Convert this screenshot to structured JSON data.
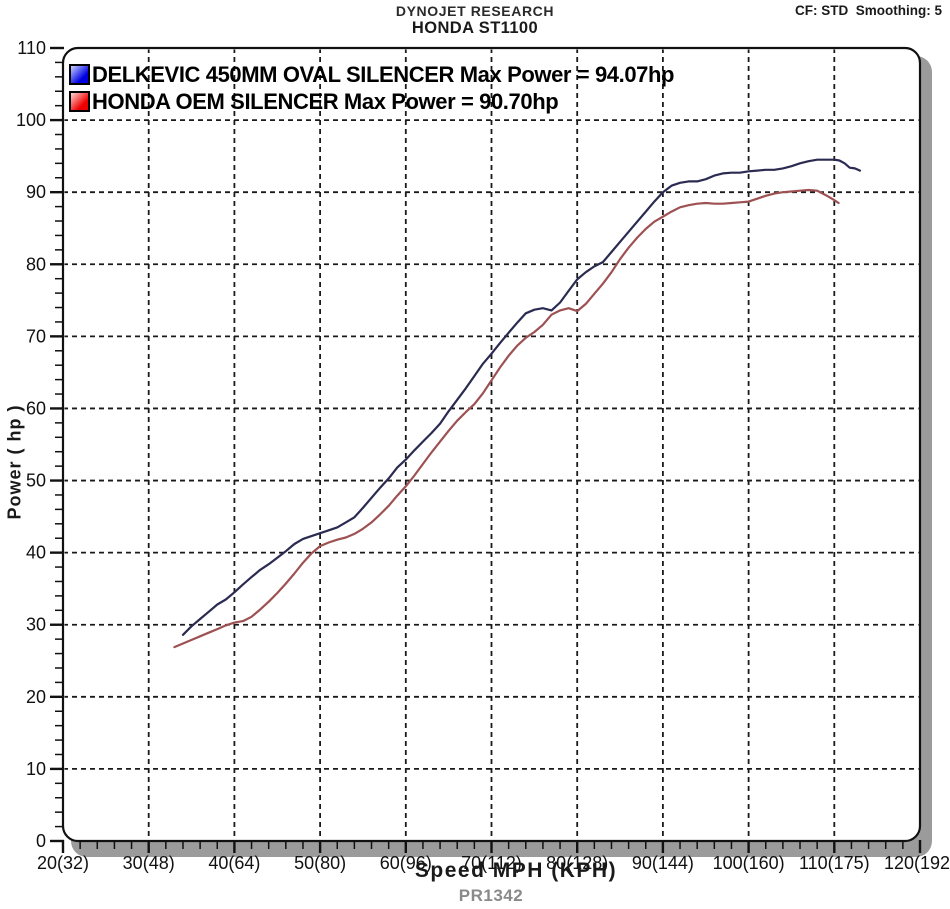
{
  "header": {
    "brand": "DYNOJET RESEARCH",
    "model": "HONDA ST1100",
    "settings": "CF: STD  Smoothing: 5"
  },
  "footer": {
    "run_id": "PR1342"
  },
  "chart_data": {
    "type": "line",
    "title": "DYNOJET RESEARCH HONDA ST1100",
    "xlabel": "Speed MPH (KPH)",
    "ylabel": "Power ( hp )",
    "xlim": [
      20,
      120
    ],
    "ylim": [
      0,
      110
    ],
    "grid": "dashed, both axes, every 10 units",
    "legend_position": "top-left inside plot",
    "x_ticks": [
      20,
      30,
      40,
      50,
      60,
      70,
      80,
      90,
      100,
      110,
      120
    ],
    "x_tick_labels": [
      "20(32)",
      "30(48)",
      "40(64)",
      "50(80)",
      "60(96)",
      "70(112)",
      "80(128)",
      "90(144)",
      "100(160)",
      "110(175)",
      "120(192)"
    ],
    "x_minor_step": 2,
    "y_ticks": [
      0,
      10,
      20,
      30,
      40,
      50,
      60,
      70,
      80,
      90,
      100,
      110
    ],
    "y_tick_labels": [
      "0",
      "10",
      "20",
      "30",
      "40",
      "50",
      "60",
      "70",
      "80",
      "90",
      "100",
      "110"
    ],
    "y_minor_step": 2,
    "series": [
      {
        "name": "DELKEVIC 450MM OVAL SILENCER",
        "legend_label": "DELKEVIC 450MM OVAL SILENCER Max Power = 94.07hp",
        "max_power_hp": 94.07,
        "line_color": "#2b2b52",
        "swatch_light": "#c9d4ff",
        "swatch_dark": "#0000e0",
        "points": [
          [
            34,
            28.6
          ],
          [
            35,
            29.8
          ],
          [
            36,
            30.8
          ],
          [
            37,
            31.8
          ],
          [
            38,
            32.8
          ],
          [
            39,
            33.5
          ],
          [
            40,
            34.5
          ],
          [
            41,
            35.6
          ],
          [
            42,
            36.6
          ],
          [
            43,
            37.6
          ],
          [
            44,
            38.4
          ],
          [
            45,
            39.3
          ],
          [
            46,
            40.2
          ],
          [
            47,
            41.2
          ],
          [
            48,
            41.9
          ],
          [
            49,
            42.3
          ],
          [
            50,
            42.7
          ],
          [
            51,
            43.1
          ],
          [
            52,
            43.5
          ],
          [
            53,
            44.2
          ],
          [
            54,
            44.9
          ],
          [
            55,
            46.2
          ],
          [
            56,
            47.6
          ],
          [
            57,
            49.0
          ],
          [
            58,
            50.3
          ],
          [
            59,
            51.8
          ],
          [
            60,
            52.9
          ],
          [
            61,
            54.2
          ],
          [
            62,
            55.4
          ],
          [
            63,
            56.6
          ],
          [
            64,
            57.9
          ],
          [
            65,
            59.6
          ],
          [
            66,
            61.2
          ],
          [
            67,
            62.8
          ],
          [
            68,
            64.5
          ],
          [
            69,
            66.2
          ],
          [
            70,
            67.6
          ],
          [
            71,
            69.1
          ],
          [
            72,
            70.5
          ],
          [
            73,
            71.9
          ],
          [
            74,
            73.2
          ],
          [
            75,
            73.7
          ],
          [
            76,
            73.9
          ],
          [
            77,
            73.6
          ],
          [
            78,
            74.7
          ],
          [
            79,
            76.3
          ],
          [
            80,
            77.9
          ],
          [
            81,
            78.9
          ],
          [
            82,
            79.7
          ],
          [
            83,
            80.3
          ],
          [
            84,
            81.7
          ],
          [
            85,
            83.1
          ],
          [
            86,
            84.5
          ],
          [
            87,
            85.9
          ],
          [
            88,
            87.3
          ],
          [
            89,
            88.7
          ],
          [
            90,
            90.0
          ],
          [
            91,
            90.9
          ],
          [
            92,
            91.3
          ],
          [
            93,
            91.5
          ],
          [
            94,
            91.5
          ],
          [
            95,
            91.8
          ],
          [
            96,
            92.3
          ],
          [
            97,
            92.6
          ],
          [
            98,
            92.7
          ],
          [
            99,
            92.7
          ],
          [
            100,
            92.9
          ],
          [
            101,
            93.0
          ],
          [
            102,
            93.1
          ],
          [
            103,
            93.1
          ],
          [
            104,
            93.3
          ],
          [
            105,
            93.6
          ],
          [
            106,
            94.0
          ],
          [
            107,
            94.3
          ],
          [
            108,
            94.5
          ],
          [
            109,
            94.5
          ],
          [
            110,
            94.5
          ],
          [
            110.6,
            94.4
          ],
          [
            111.2,
            94.0
          ],
          [
            111.8,
            93.4
          ],
          [
            112.4,
            93.3
          ],
          [
            113,
            93.0
          ]
        ]
      },
      {
        "name": "HONDA OEM SILENCER",
        "legend_label": "HONDA OEM SILENCER Max Power = 90.70hp",
        "max_power_hp": 90.7,
        "line_color": "#9d5152",
        "swatch_light": "#ffd6d6",
        "swatch_dark": "#ee0000",
        "points": [
          [
            33,
            26.9
          ],
          [
            34,
            27.4
          ],
          [
            35,
            27.9
          ],
          [
            36,
            28.4
          ],
          [
            37,
            28.9
          ],
          [
            38,
            29.4
          ],
          [
            39,
            29.9
          ],
          [
            40,
            30.3
          ],
          [
            41,
            30.5
          ],
          [
            42,
            31.1
          ],
          [
            43,
            32.1
          ],
          [
            44,
            33.2
          ],
          [
            45,
            34.4
          ],
          [
            46,
            35.7
          ],
          [
            47,
            37.1
          ],
          [
            48,
            38.6
          ],
          [
            49,
            39.9
          ],
          [
            50,
            40.9
          ],
          [
            51,
            41.4
          ],
          [
            52,
            41.8
          ],
          [
            53,
            42.1
          ],
          [
            54,
            42.6
          ],
          [
            55,
            43.3
          ],
          [
            56,
            44.2
          ],
          [
            57,
            45.3
          ],
          [
            58,
            46.5
          ],
          [
            59,
            47.9
          ],
          [
            60,
            49.2
          ],
          [
            61,
            50.7
          ],
          [
            62,
            52.3
          ],
          [
            63,
            53.9
          ],
          [
            64,
            55.4
          ],
          [
            65,
            56.9
          ],
          [
            66,
            58.3
          ],
          [
            67,
            59.5
          ],
          [
            68,
            60.6
          ],
          [
            69,
            62.1
          ],
          [
            70,
            63.9
          ],
          [
            71,
            65.7
          ],
          [
            72,
            67.3
          ],
          [
            73,
            68.7
          ],
          [
            74,
            69.8
          ],
          [
            75,
            70.6
          ],
          [
            76,
            71.6
          ],
          [
            77,
            73.0
          ],
          [
            78,
            73.6
          ],
          [
            79,
            73.9
          ],
          [
            80,
            73.5
          ],
          [
            81,
            74.5
          ],
          [
            82,
            75.9
          ],
          [
            83,
            77.3
          ],
          [
            84,
            78.9
          ],
          [
            85,
            80.7
          ],
          [
            86,
            82.3
          ],
          [
            87,
            83.7
          ],
          [
            88,
            84.9
          ],
          [
            89,
            85.9
          ],
          [
            90,
            86.6
          ],
          [
            91,
            87.3
          ],
          [
            92,
            87.9
          ],
          [
            93,
            88.2
          ],
          [
            94,
            88.4
          ],
          [
            95,
            88.5
          ],
          [
            96,
            88.4
          ],
          [
            97,
            88.4
          ],
          [
            98,
            88.5
          ],
          [
            99,
            88.6
          ],
          [
            100,
            88.7
          ],
          [
            101,
            89.1
          ],
          [
            102,
            89.5
          ],
          [
            103,
            89.8
          ],
          [
            104,
            90.0
          ],
          [
            105,
            90.1
          ],
          [
            106,
            90.2
          ],
          [
            107,
            90.3
          ],
          [
            108,
            90.2
          ],
          [
            109,
            89.6
          ],
          [
            110,
            88.9
          ],
          [
            110.5,
            88.5
          ]
        ]
      }
    ]
  }
}
